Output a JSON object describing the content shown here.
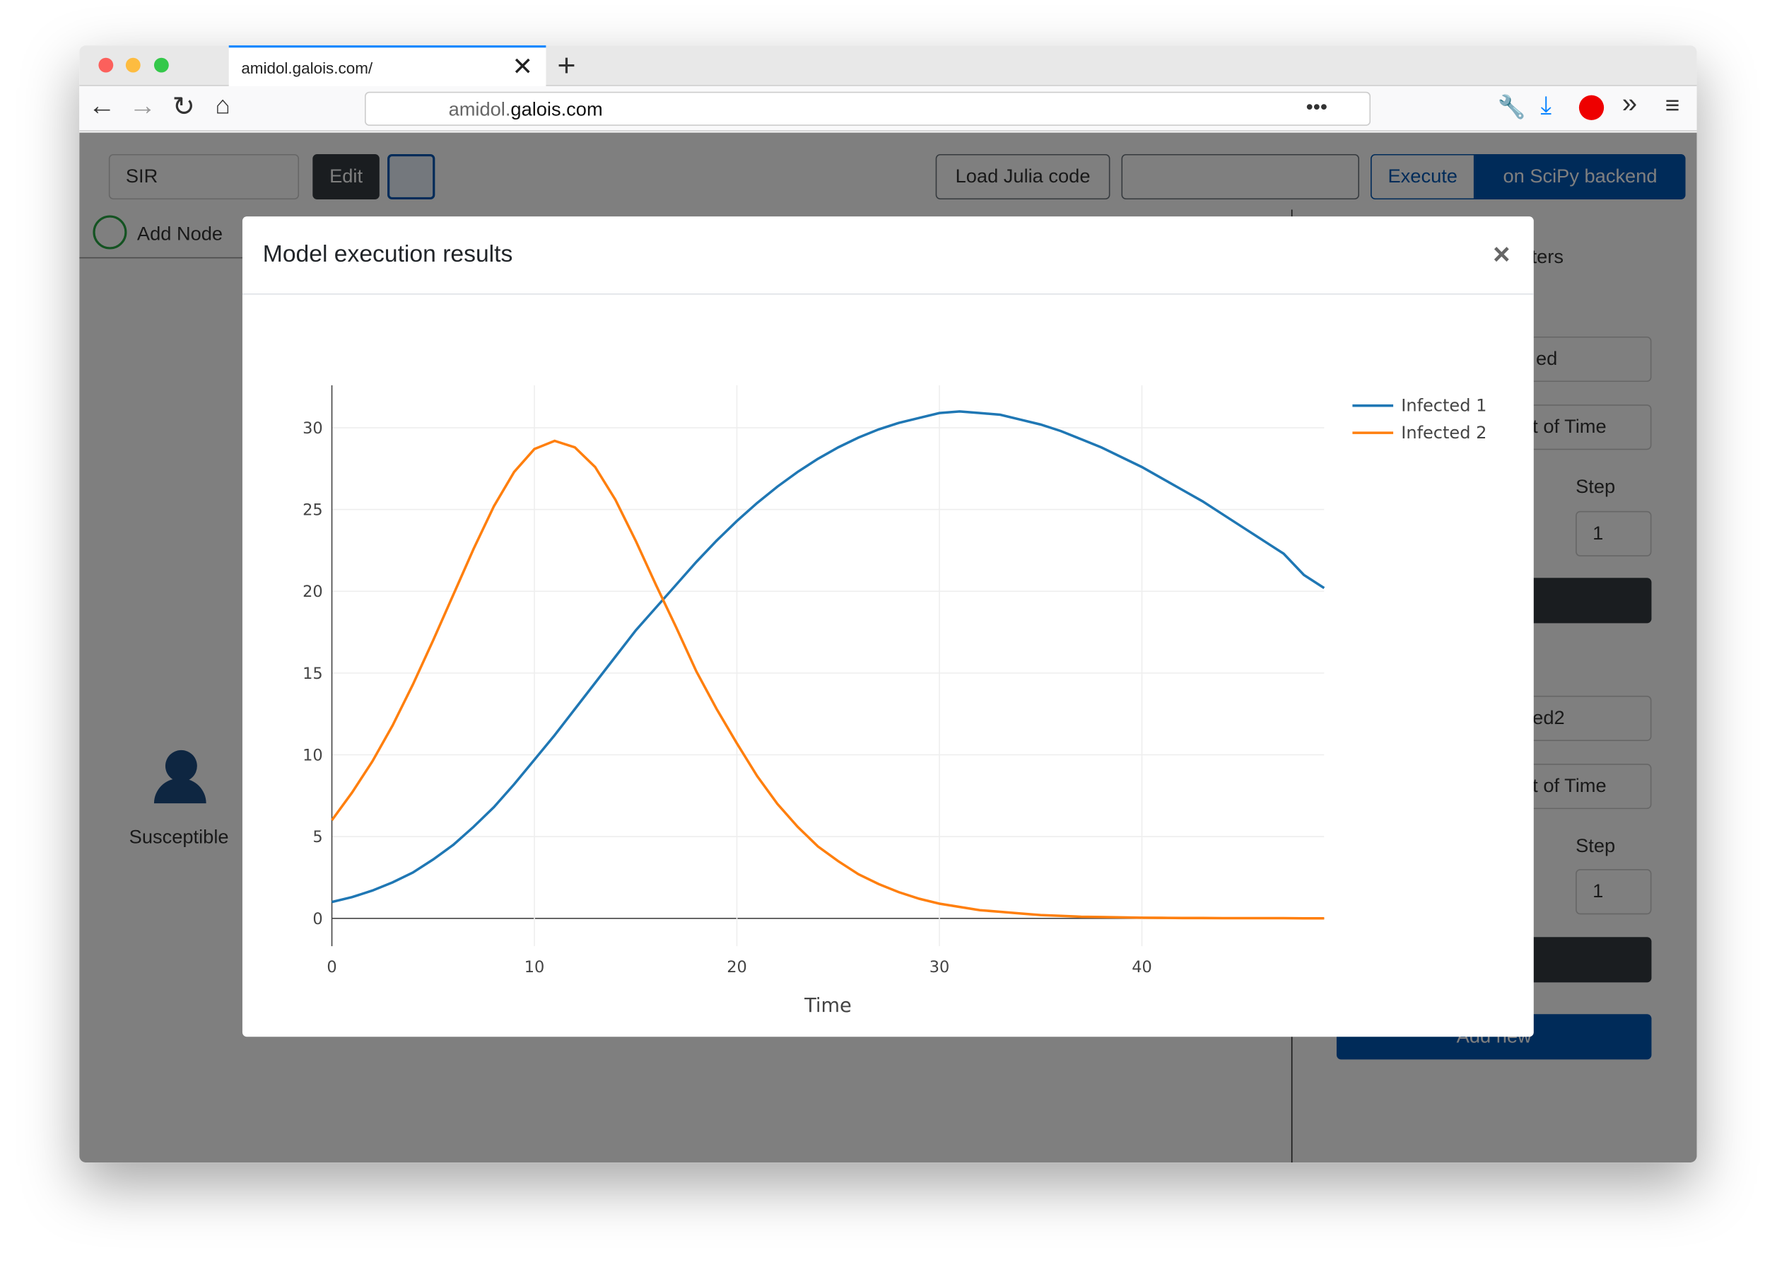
{
  "browser": {
    "tab_title": "amidol.galois.com/",
    "url_prefix": "amidol.",
    "url_domain": "galois.com"
  },
  "app": {
    "model_select": "SIR",
    "edit_button": "Edit",
    "add_node": "Add Node",
    "load_button": "Load Julia code",
    "execute_button": "Execute",
    "backend_button": "on SciPy backend",
    "node_label": "Susceptible",
    "panel": {
      "heading": "ters",
      "select_1": "ed",
      "unit_1": "t of Time",
      "step_label_1": "Step",
      "step_value_1": "1",
      "select_2": "ed2",
      "unit_2": "t of Time",
      "step_label_2": "Step",
      "step_value_2": "1",
      "add_button": "Add new"
    }
  },
  "modal": {
    "title": "Model execution results",
    "close": "×"
  },
  "chart_data": {
    "type": "line",
    "x_label": "Time",
    "x": [
      0,
      1,
      2,
      3,
      4,
      5,
      6,
      7,
      8,
      9,
      10,
      11,
      12,
      13,
      14,
      15,
      16,
      17,
      18,
      19,
      20,
      21,
      22,
      23,
      24,
      25,
      26,
      27,
      28,
      29,
      30,
      31,
      32,
      33,
      34,
      35,
      36,
      37,
      38,
      39,
      40,
      41,
      42,
      43,
      44,
      45,
      46,
      47,
      48,
      49
    ],
    "series": [
      {
        "name": "Infected 1",
        "color": "#1f77b4",
        "values": [
          1.0,
          1.3,
          1.7,
          2.2,
          2.8,
          3.6,
          4.5,
          5.6,
          6.8,
          8.2,
          9.7,
          11.2,
          12.8,
          14.4,
          16.0,
          17.6,
          19.0,
          20.4,
          21.8,
          23.1,
          24.3,
          25.4,
          26.4,
          27.3,
          28.1,
          28.8,
          29.4,
          29.9,
          30.3,
          30.6,
          30.9,
          31.0,
          30.9,
          30.8,
          30.5,
          30.2,
          29.8,
          29.3,
          28.8,
          28.2,
          27.6,
          26.9,
          26.2,
          25.5,
          24.7,
          23.9,
          23.1,
          22.3,
          21.0,
          20.2
        ]
      },
      {
        "name": "Infected 2",
        "color": "#ff7f0e",
        "values": [
          6.0,
          7.7,
          9.6,
          11.8,
          14.3,
          17.0,
          19.8,
          22.6,
          25.2,
          27.3,
          28.7,
          29.2,
          28.8,
          27.6,
          25.6,
          23.1,
          20.4,
          17.8,
          15.1,
          12.8,
          10.7,
          8.7,
          7.0,
          5.6,
          4.4,
          3.5,
          2.7,
          2.1,
          1.6,
          1.2,
          0.9,
          0.7,
          0.5,
          0.4,
          0.3,
          0.2,
          0.15,
          0.1,
          0.08,
          0.06,
          0.04,
          0.03,
          0.02,
          0.02,
          0.01,
          0.01,
          0.01,
          0.01,
          0,
          0
        ]
      }
    ],
    "xlim": [
      0,
      49
    ],
    "xticks": [
      0,
      10,
      20,
      30,
      40
    ],
    "ylim": [
      -1.7,
      32.6
    ],
    "yticks": [
      0,
      5,
      10,
      15,
      20,
      25,
      30
    ],
    "grid": true,
    "legend": "right"
  }
}
